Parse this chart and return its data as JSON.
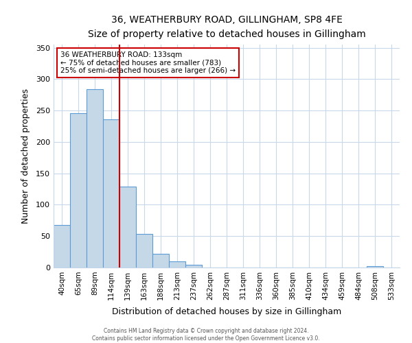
{
  "title": "36, WEATHERBURY ROAD, GILLINGHAM, SP8 4FE",
  "subtitle": "Size of property relative to detached houses in Gillingham",
  "xlabel": "Distribution of detached houses by size in Gillingham",
  "ylabel": "Number of detached properties",
  "bar_labels": [
    "40sqm",
    "65sqm",
    "89sqm",
    "114sqm",
    "139sqm",
    "163sqm",
    "188sqm",
    "213sqm",
    "237sqm",
    "262sqm",
    "287sqm",
    "311sqm",
    "336sqm",
    "360sqm",
    "385sqm",
    "410sqm",
    "434sqm",
    "459sqm",
    "484sqm",
    "508sqm",
    "533sqm"
  ],
  "bar_values": [
    68,
    246,
    284,
    236,
    129,
    53,
    22,
    10,
    4,
    0,
    0,
    0,
    0,
    0,
    0,
    0,
    0,
    0,
    0,
    2,
    0
  ],
  "bar_color": "#c5d8e8",
  "bar_edgecolor": "#5b9bd5",
  "vline_color": "#cc0000",
  "ylim": [
    0,
    355
  ],
  "yticks": [
    0,
    50,
    100,
    150,
    200,
    250,
    300,
    350
  ],
  "annotation_title": "36 WEATHERBURY ROAD: 133sqm",
  "annotation_line1": "← 75% of detached houses are smaller (783)",
  "annotation_line2": "25% of semi-detached houses are larger (266) →",
  "annotation_box_color": "#ffffff",
  "annotation_box_edgecolor": "#cc0000",
  "footer_line1": "Contains HM Land Registry data © Crown copyright and database right 2024.",
  "footer_line2": "Contains public sector information licensed under the Open Government Licence v3.0.",
  "background_color": "#ffffff",
  "grid_color": "#c8d8e8"
}
